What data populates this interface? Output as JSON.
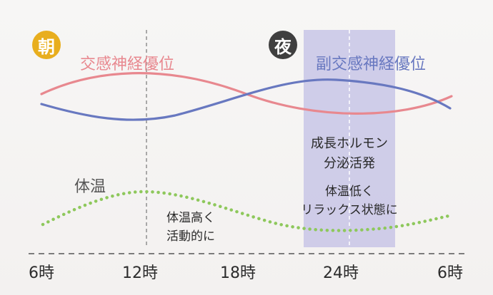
{
  "badges": {
    "morning": {
      "text": "朝",
      "color": "#e8ae1e"
    },
    "night": {
      "text": "夜",
      "color": "#3f3f3f"
    }
  },
  "legend": {
    "sympathetic": {
      "text": "交感神経優位",
      "color": "#e8888f"
    },
    "parasympathetic": {
      "text": "副交感神経優位",
      "color": "#6878c0"
    },
    "body_temp": {
      "text": "体温",
      "color": "#8ec85c"
    }
  },
  "night_band_color": "#c8c6e6",
  "annotations": {
    "growth_line1": "成長ホルモン",
    "growth_line2": "分泌活発",
    "low_temp_line1": "体温低く",
    "low_temp_line2": "リラックス状態に",
    "high_temp_line1": "体温高く",
    "high_temp_line2": "活動的に"
  },
  "x_axis": {
    "ticks": [
      "6時",
      "12時",
      "18時",
      "24時",
      "6時"
    ]
  }
}
